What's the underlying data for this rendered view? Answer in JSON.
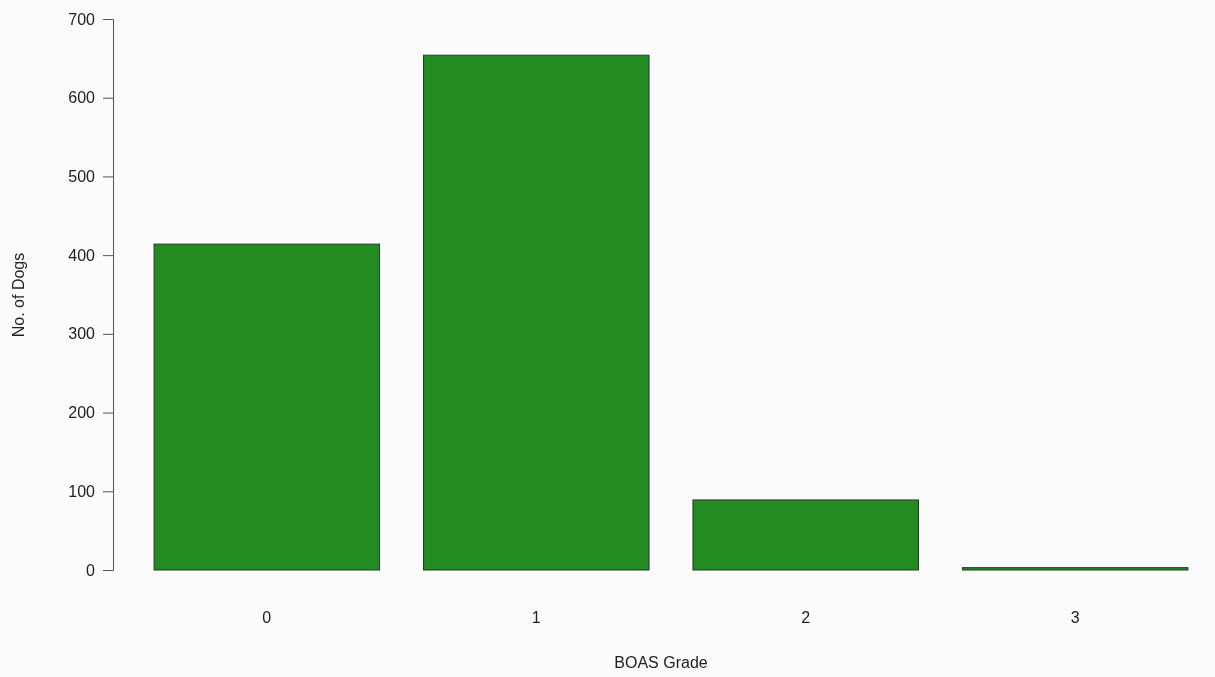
{
  "chart_data": {
    "type": "bar",
    "xlabel": "BOAS Grade",
    "ylabel": "No. of Dogs",
    "categories": [
      "0",
      "1",
      "2",
      "3"
    ],
    "values": [
      414,
      654,
      89,
      3
    ],
    "color": "#228b22",
    "ylim": [
      0,
      700
    ],
    "yticks": [
      0,
      100,
      200,
      300,
      400,
      500,
      600,
      700
    ],
    "grid": false
  }
}
